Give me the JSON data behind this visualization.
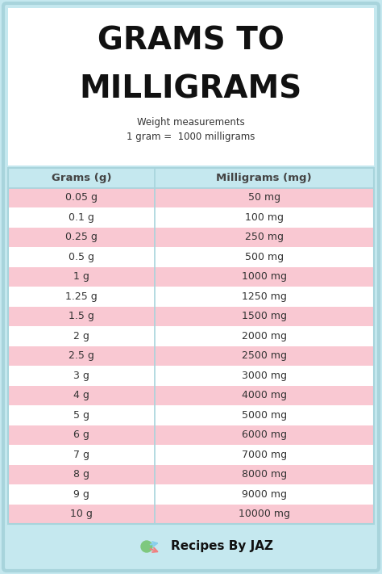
{
  "title_line1": "GRAMS TO",
  "title_line2": "MILLIGRAMS",
  "subtitle_line1": "Weight measurements",
  "subtitle_line2": "1 gram =  1000 milligrams",
  "col_headers": [
    "Grams (g)",
    "Milligrams (mg)"
  ],
  "rows": [
    [
      "0.05 g",
      "50 mg"
    ],
    [
      "0.1 g",
      "100 mg"
    ],
    [
      "0.25 g",
      "250 mg"
    ],
    [
      "0.5 g",
      "500 mg"
    ],
    [
      "1 g",
      "1000 mg"
    ],
    [
      "1.25 g",
      "1250 mg"
    ],
    [
      "1.5 g",
      "1500 mg"
    ],
    [
      "2 g",
      "2000 mg"
    ],
    [
      "2.5 g",
      "2500 mg"
    ],
    [
      "3 g",
      "3000 mg"
    ],
    [
      "4 g",
      "4000 mg"
    ],
    [
      "5 g",
      "5000 mg"
    ],
    [
      "6 g",
      "6000 mg"
    ],
    [
      "7 g",
      "7000 mg"
    ],
    [
      "8 g",
      "8000 mg"
    ],
    [
      "9 g",
      "9000 mg"
    ],
    [
      "10 g",
      "10000 mg"
    ]
  ],
  "footer_text": "Recipes By JAZ",
  "bg_color": "#c5e8ef",
  "title_bg": "#ffffff",
  "header_bg": "#c5e8ef",
  "row_color_odd": "#f9c8d2",
  "row_color_even": "#ffffff",
  "text_color": "#333333",
  "title_color": "#111111",
  "border_color": "#a8d4dc",
  "header_text_color": "#444444",
  "col_divider_color": "#a8d4dc",
  "footer_color": "#111111",
  "title_fontsize": 28,
  "subtitle_fontsize": 8.5,
  "header_fontsize": 9.5,
  "row_fontsize": 9.0
}
